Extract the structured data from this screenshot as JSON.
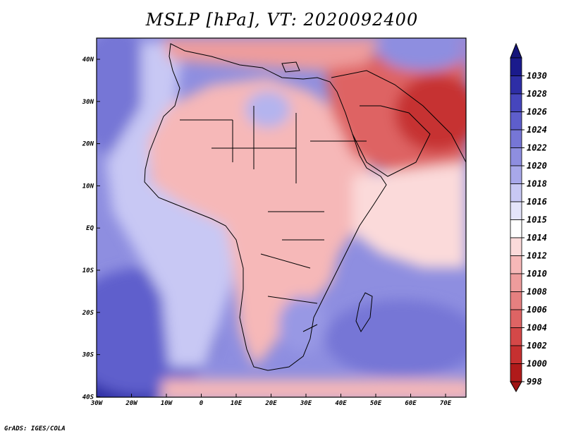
{
  "title": "MSLP [hPa], VT: 2020092400",
  "credit": "GrADS: IGES/COLA",
  "map": {
    "lon_ticks": [
      "30W",
      "20W",
      "10W",
      "0",
      "10E",
      "20E",
      "30E",
      "40E",
      "50E",
      "60E",
      "70E"
    ],
    "lat_ticks": [
      "40N",
      "30N",
      "20N",
      "10N",
      "EQ",
      "10S",
      "20S",
      "30S",
      "40S"
    ]
  },
  "colorbar": {
    "levels": [
      "1030",
      "1028",
      "1026",
      "1024",
      "1022",
      "1020",
      "1018",
      "1016",
      "1015",
      "1014",
      "1012",
      "1010",
      "1008",
      "1006",
      "1004",
      "1002",
      "1000",
      "998"
    ],
    "colors": [
      "#1a1a8c",
      "#2e2ea6",
      "#4646bd",
      "#5e5ecc",
      "#7676d6",
      "#8e8ee0",
      "#a8a8ea",
      "#c8c8f4",
      "#e4e4fa",
      "#ffffff",
      "#fbdada",
      "#f6b8b8",
      "#ee9c9c",
      "#e68080",
      "#de6464",
      "#d44848",
      "#c63030",
      "#b01a1a"
    ],
    "top_arrow_color": "#14147a",
    "bottom_arrow_color": "#a01414"
  }
}
